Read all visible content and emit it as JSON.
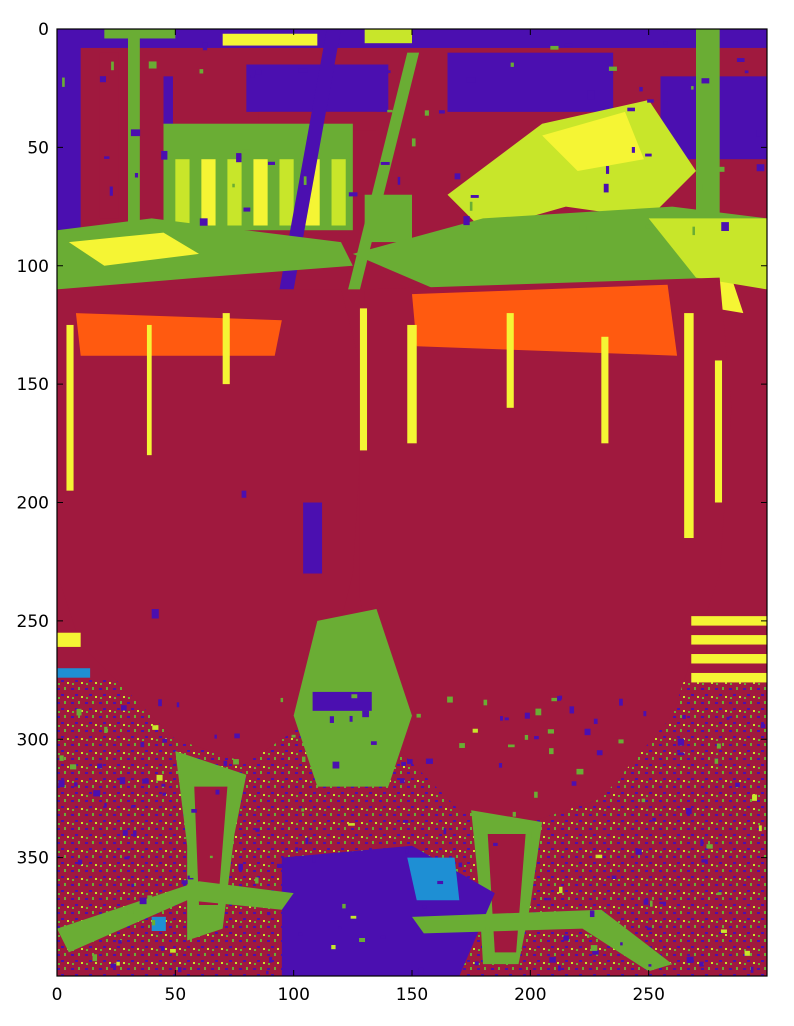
{
  "chart_data": {
    "type": "heatmap",
    "title": "",
    "xlabel": "",
    "ylabel": "",
    "xlim": [
      0,
      300
    ],
    "ylim": [
      400,
      0
    ],
    "image_shape": {
      "rows": 400,
      "cols": 300
    },
    "x_ticks": [
      0,
      50,
      100,
      150,
      200,
      250
    ],
    "y_ticks": [
      0,
      50,
      100,
      150,
      200,
      250,
      300,
      350
    ],
    "grid": false,
    "colors": {
      "crimson": "#a0193e",
      "indigo": "#4b0fb0",
      "green": "#6aad34",
      "lime": "#c8e62a",
      "yellow": "#f5f534",
      "orange": "#ff5a10",
      "cyan": "#1e8fd4",
      "dark": "#1b1f2e"
    },
    "regions": [
      {
        "name": "background",
        "color": "crimson"
      }
    ]
  }
}
